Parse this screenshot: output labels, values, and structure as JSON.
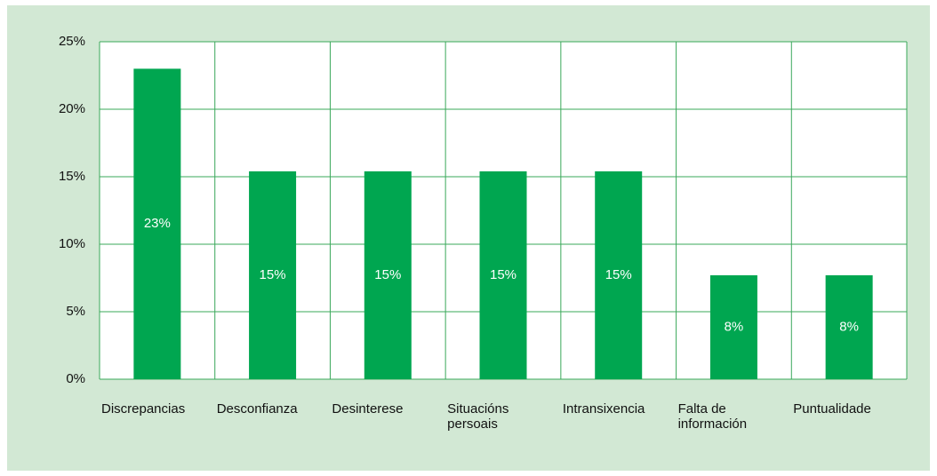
{
  "chart_data": {
    "type": "bar",
    "categories": [
      "Discrepancias",
      "Desconfianza",
      "Desinterese",
      "Situacións persoais",
      "Intransixencia",
      "Falta de información",
      "Puntualidade"
    ],
    "values": [
      23,
      15.4,
      15.4,
      15.4,
      15.4,
      7.7,
      7.7
    ],
    "value_labels": [
      "23%",
      "15%",
      "15%",
      "15%",
      "15%",
      "8%",
      "8%"
    ],
    "color": "#00a650",
    "ylim": [
      0,
      25
    ],
    "yticks": [
      {
        "value": 0,
        "label": "0%"
      },
      {
        "value": 5,
        "label": "5%"
      },
      {
        "value": 10,
        "label": "10%"
      },
      {
        "value": 15,
        "label": "15%"
      },
      {
        "value": 20,
        "label": "20%"
      },
      {
        "value": 25,
        "label": "25%"
      }
    ],
    "grid": true
  }
}
